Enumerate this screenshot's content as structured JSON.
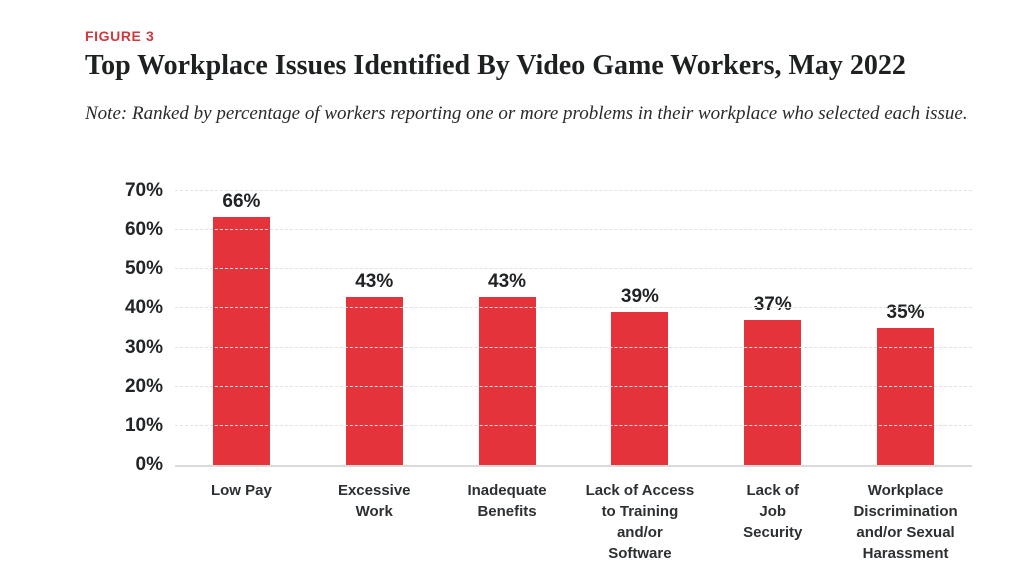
{
  "header": {
    "figure_label": "FIGURE 3",
    "title": "Top Workplace Issues Identified By Video Game Workers, May 2022",
    "note": "Note: Ranked by percentage of workers reporting one or more problems in their workplace who selected each issue."
  },
  "colors": {
    "bar": "#E4333A",
    "figure_label": "#CE3A3F",
    "gridline": "#E2E2E2",
    "text_dark": "#202325"
  },
  "chart_data": {
    "type": "bar",
    "title": "Top Workplace Issues Identified By Video Game Workers, May 2022",
    "categories": [
      "Low Pay",
      "Excessive\nWork",
      "Inadequate\nBenefits",
      "Lack of Access\nto Training\nand/or\nSoftware",
      "Lack of\nJob\nSecurity",
      "Workplace\nDiscrimination\nand/or Sexual\nHarassment"
    ],
    "values": [
      66,
      43,
      43,
      39,
      37,
      35
    ],
    "value_labels": [
      "66%",
      "43%",
      "43%",
      "39%",
      "37%",
      "35%"
    ],
    "xlabel": "",
    "ylabel": "",
    "ylim": [
      0,
      70
    ],
    "yticks": [
      0,
      10,
      20,
      30,
      40,
      50,
      60,
      70
    ],
    "ytick_labels": [
      "0%",
      "10%",
      "20%",
      "30%",
      "40%",
      "50%",
      "60%",
      "70%"
    ],
    "grid": true,
    "grid_style": "dashed-horizontal",
    "legend": false,
    "bar_color": "#E4333A"
  }
}
